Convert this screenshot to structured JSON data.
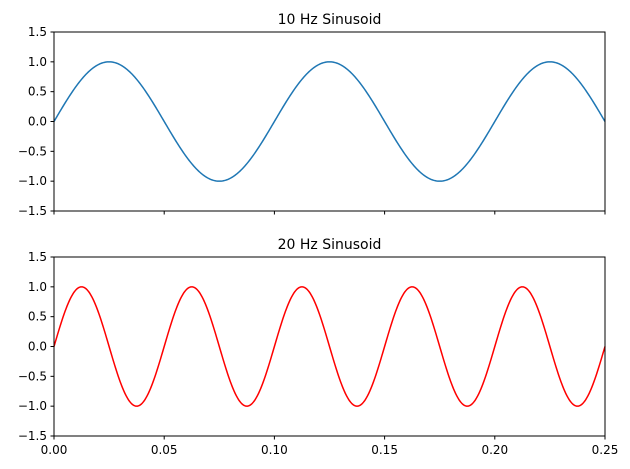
{
  "chart_data": [
    {
      "type": "line",
      "title": "10 Hz Sinusoid",
      "xlabel": "",
      "ylabel": "",
      "xlim": [
        0,
        0.25
      ],
      "ylim": [
        -1.5,
        1.5
      ],
      "yticks": [
        "−1.5",
        "−1.0",
        "−0.5",
        "0.0",
        "0.5",
        "1.0",
        "1.5"
      ],
      "ytick_values": [
        -1.5,
        -1.0,
        -0.5,
        0.0,
        0.5,
        1.0,
        1.5
      ],
      "xtick_values": [
        0,
        0.05,
        0.1,
        0.15,
        0.2,
        0.25
      ],
      "xtick_labels_shown": false,
      "grid": false,
      "series": [
        {
          "frequency_hz": 10,
          "amplitude": 1.0,
          "color": "#1f77b4"
        }
      ]
    },
    {
      "type": "line",
      "title": "20 Hz Sinusoid",
      "xlabel": "",
      "ylabel": "",
      "xlim": [
        0,
        0.25
      ],
      "ylim": [
        -1.5,
        1.5
      ],
      "yticks": [
        "−1.5",
        "−1.0",
        "−0.5",
        "0.0",
        "0.5",
        "1.0",
        "1.5"
      ],
      "ytick_values": [
        -1.5,
        -1.0,
        -0.5,
        0.0,
        0.5,
        1.0,
        1.5
      ],
      "xticks": [
        "0.00",
        "0.05",
        "0.10",
        "0.15",
        "0.20",
        "0.25"
      ],
      "xtick_values": [
        0,
        0.05,
        0.1,
        0.15,
        0.2,
        0.25
      ],
      "xtick_labels_shown": true,
      "grid": false,
      "series": [
        {
          "frequency_hz": 20,
          "amplitude": 1.0,
          "color": "#ff0000"
        }
      ]
    }
  ]
}
